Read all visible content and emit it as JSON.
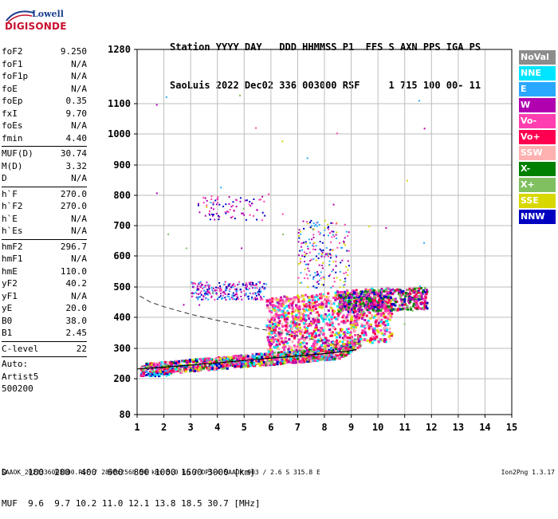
{
  "logo": {
    "line1": "Lowell",
    "line2": "DIGISONDE"
  },
  "header": {
    "labels": "Station YYYY DAY   DDD HHMMSS P1  FFS S AXN PPS IGA PS",
    "values": "SaoLuis 2022 Dec02 336 003000 RSF     1 715 100 00- 11"
  },
  "params": [
    {
      "k": "foF2",
      "v": "9.250"
    },
    {
      "k": "foF1",
      "v": "N/A"
    },
    {
      "k": "foF1p",
      "v": "N/A"
    },
    {
      "k": "foE",
      "v": "N/A"
    },
    {
      "k": "foEp",
      "v": "0.35"
    },
    {
      "k": "fxI",
      "v": "9.70"
    },
    {
      "k": "foEs",
      "v": "N/A"
    },
    {
      "k": "fmin",
      "v": "4.40"
    },
    {
      "sep": true
    },
    {
      "k": "MUF(D)",
      "v": "30.74"
    },
    {
      "k": "M(D)",
      "v": "3.32"
    },
    {
      "k": "D",
      "v": "N/A"
    },
    {
      "sep": true
    },
    {
      "k": "h`F",
      "v": "270.0"
    },
    {
      "k": "h`F2",
      "v": "270.0"
    },
    {
      "k": "h`E",
      "v": "N/A"
    },
    {
      "k": "h`Es",
      "v": "N/A"
    },
    {
      "sep": true
    },
    {
      "k": "hmF2",
      "v": "296.7"
    },
    {
      "k": "hmF1",
      "v": "N/A"
    },
    {
      "k": "hmE",
      "v": "110.0"
    },
    {
      "k": "yF2",
      "v": "40.2"
    },
    {
      "k": "yF1",
      "v": "N/A"
    },
    {
      "k": "yE",
      "v": "20.0"
    },
    {
      "k": "B0",
      "v": "38.0"
    },
    {
      "k": "B1",
      "v": "2.45"
    },
    {
      "sep": true
    },
    {
      "k": "C-level",
      "v": "22"
    },
    {
      "sep": true
    },
    {
      "t": "Auto:"
    },
    {
      "t": "Artist5"
    },
    {
      "t": "500200"
    }
  ],
  "legend": [
    {
      "label": "NoVal",
      "color": "#8c8c8c"
    },
    {
      "label": "NNE",
      "color": "#00e5ff"
    },
    {
      "label": "E",
      "color": "#2aa8ff"
    },
    {
      "label": "W",
      "color": "#b000b0"
    },
    {
      "label": "Vo-",
      "color": "#ff3fb0"
    },
    {
      "label": "Vo+",
      "color": "#ff0050"
    },
    {
      "label": "SSW",
      "color": "#ffb0b0"
    },
    {
      "label": "X-",
      "color": "#008000"
    },
    {
      "label": "X+",
      "color": "#80c060"
    },
    {
      "label": "SSE",
      "color": "#d8d800"
    },
    {
      "label": "NNW",
      "color": "#0000c0"
    }
  ],
  "chart_data": {
    "type": "scatter",
    "title": "",
    "xlabel": "",
    "ylabel": "",
    "xlim": [
      1,
      15
    ],
    "ylim": [
      80,
      1280
    ],
    "x_ticks": [
      "1",
      "2",
      "3",
      "4",
      "5",
      "6",
      "7",
      "8",
      "9",
      "10",
      "11",
      "12",
      "13",
      "14",
      "15"
    ],
    "y_ticks": [
      {
        "label": "80",
        "value": 80
      },
      {
        "label": "200",
        "value": 200
      },
      {
        "label": "300",
        "value": 300
      },
      {
        "label": "400",
        "value": 400
      },
      {
        "label": "500",
        "value": 500
      },
      {
        "label": "600",
        "value": 600
      },
      {
        "label": "700",
        "value": 700
      },
      {
        "label": "800",
        "value": 800
      },
      {
        "label": "900",
        "value": 900
      },
      {
        "label": "1000",
        "value": 1000
      },
      {
        "label": "1100",
        "value": 1100
      },
      {
        "label": "1280",
        "value": 1280
      }
    ],
    "grid": true,
    "scale_note": "log-like height scale",
    "profile_solid": [
      [
        1.0,
        232
      ],
      [
        2.0,
        238
      ],
      [
        3.0,
        245
      ],
      [
        4.0,
        252
      ],
      [
        5.0,
        260
      ],
      [
        6.0,
        268
      ],
      [
        7.0,
        275
      ],
      [
        8.0,
        283
      ],
      [
        8.8,
        290
      ],
      [
        9.2,
        296
      ]
    ],
    "profile_dashed": [
      [
        1.1,
        470
      ],
      [
        1.5,
        450
      ],
      [
        2.0,
        435
      ],
      [
        3.0,
        410
      ],
      [
        4.0,
        390
      ],
      [
        5.0,
        372
      ],
      [
        6.0,
        356
      ],
      [
        7.0,
        340
      ],
      [
        8.0,
        320
      ],
      [
        8.8,
        305
      ],
      [
        9.2,
        297
      ]
    ]
  },
  "bottom": {
    "d_row": "D    100  200  400  600  800 1000 1500 3000 [km]",
    "muf_row": "MUF  9.6  9.7 10.2 11.0 12.1 13.8 18.5 30.7 [MHz]"
  },
  "footer": "SAAOK_2022336003000.RSF / 280fx256h 50 kHs 5.0 km / DPS-4 SAAOK 903 / 2.6 S 315.8 E",
  "version": "Ion2Png 1.3.17"
}
